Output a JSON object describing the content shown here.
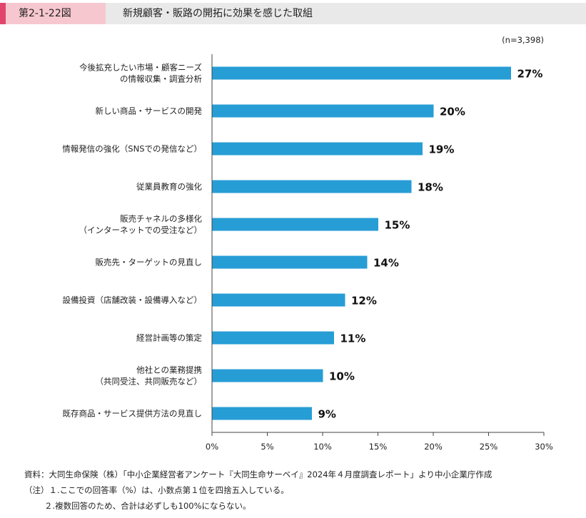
{
  "header": {
    "figure_label": "第2-1-22図",
    "title": "新規顧客・販路の開拓に効果を感じた取組"
  },
  "chart_data": {
    "type": "bar",
    "orientation": "horizontal",
    "sample_note": "(n=3,398)",
    "categories": [
      [
        "今後拡充したい市場・顧客ニーズ",
        "の情報収集・調査分析"
      ],
      [
        "新しい商品・サービスの開発"
      ],
      [
        "情報発信の強化（SNSでの発信など）"
      ],
      [
        "従業員教育の強化"
      ],
      [
        "販売チャネルの多様化",
        "（インターネットでの受注など）"
      ],
      [
        "販売先・ターゲットの見直し"
      ],
      [
        "設備投資（店舗改装・設備導入など）"
      ],
      [
        "経営計画等の策定"
      ],
      [
        "他社との業務提携",
        "（共同受注、共同販売など）"
      ],
      [
        "既存商品・サービス提供方法の見直し"
      ]
    ],
    "values": [
      27,
      20,
      19,
      18,
      15,
      14,
      12,
      11,
      10,
      9
    ],
    "value_labels": [
      "27%",
      "20%",
      "19%",
      "18%",
      "15%",
      "14%",
      "12%",
      "11%",
      "10%",
      "9%"
    ],
    "xlim": [
      0,
      30
    ],
    "ticks": [
      "0%",
      "5%",
      "10%",
      "15%",
      "20%",
      "25%",
      "30%"
    ],
    "tick_values": [
      0,
      5,
      10,
      15,
      20,
      25,
      30
    ],
    "bar_color": "#279dd6",
    "grid": false
  },
  "notes": {
    "source": "資料：大同生命保険（株）「中小企業経営者アンケート『大同生命サーベイ』2024年４月度調査レポート」より中小企業庁作成",
    "note1": "（注）１.ここでの回答率（%）は、小数点第１位を四捨五入している。",
    "note2": "２.複数回答のため、合計は必ずしも100%にならない。"
  }
}
